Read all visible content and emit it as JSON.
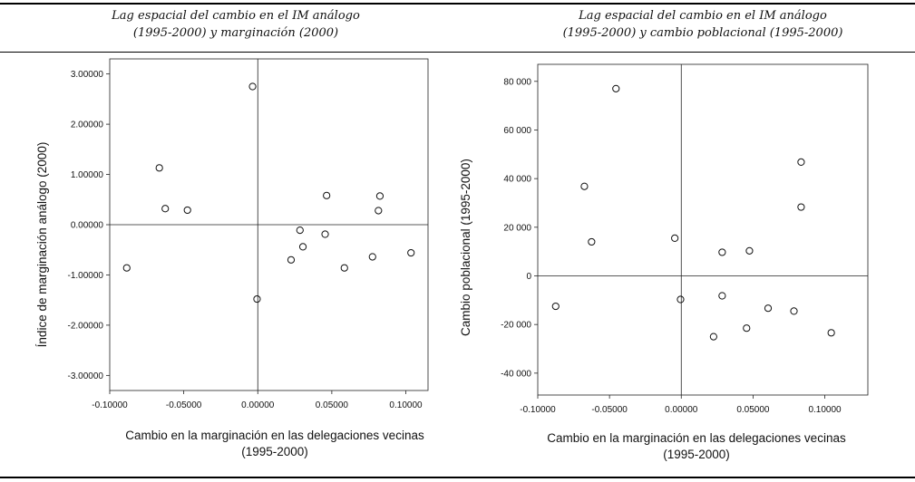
{
  "captions": {
    "left": {
      "line1_pre": "Lag espacial del cambio en el ",
      "line1_abbr": "IM",
      "line1_post": " análogo",
      "line2": "(1995-2000) y marginación (2000)"
    },
    "right": {
      "line1_pre": "Lag espacial del cambio en el ",
      "line1_abbr": "IM",
      "line1_post": " análogo",
      "line2": "(1995-2000) y cambio poblacional  (1995-2000)"
    }
  },
  "chart_data": [
    {
      "type": "scatter",
      "title": "Lag espacial del cambio en el IM análogo (1995-2000) y marginación (2000)",
      "xlabel_line1": "Cambio en la marginación en las delegaciones vecinas",
      "xlabel_line2": "(1995-2000)",
      "ylabel": "Índice de marginación análogo (2000)",
      "xlim": [
        -0.1,
        0.115
      ],
      "ylim": [
        -3.3,
        3.3
      ],
      "xticks": [
        -0.1,
        -0.05,
        0.0,
        0.05,
        0.1
      ],
      "xtick_labels": [
        "-0.10000",
        "-0.05000",
        "0.00000",
        "0.05000",
        "0.10000"
      ],
      "yticks": [
        3,
        2,
        1,
        0,
        -1,
        -2,
        -3
      ],
      "ytick_labels": [
        "3.00000",
        "2.00000",
        "1.00000",
        "0.00000",
        "-1.00000",
        "-2.00000",
        "-3.00000"
      ],
      "reference_lines": {
        "x": 0,
        "y": 0
      },
      "points": [
        {
          "x": -0.0885,
          "y": -0.86
        },
        {
          "x": -0.0665,
          "y": 1.13
        },
        {
          "x": -0.0625,
          "y": 0.32
        },
        {
          "x": -0.0475,
          "y": 0.29
        },
        {
          "x": -0.0035,
          "y": 2.75
        },
        {
          "x": -0.0005,
          "y": -1.48
        },
        {
          "x": 0.0225,
          "y": -0.7
        },
        {
          "x": 0.0285,
          "y": -0.11
        },
        {
          "x": 0.0305,
          "y": -0.44
        },
        {
          "x": 0.0455,
          "y": -0.19
        },
        {
          "x": 0.0465,
          "y": 0.58
        },
        {
          "x": 0.0585,
          "y": -0.86
        },
        {
          "x": 0.0775,
          "y": -0.64
        },
        {
          "x": 0.0815,
          "y": 0.28
        },
        {
          "x": 0.0825,
          "y": 0.57
        },
        {
          "x": 0.1035,
          "y": -0.56
        }
      ]
    },
    {
      "type": "scatter",
      "title": "Lag espacial del cambio en el IM análogo (1995-2000) y cambio poblacional (1995-2000)",
      "xlabel_line1": "Cambio en la marginación en las delegaciones vecinas",
      "xlabel_line2": "(1995-2000)",
      "ylabel": "Cambio poblacional (1995-2000)",
      "xlim": [
        -0.1,
        0.13
      ],
      "ylim": [
        -49000,
        87000
      ],
      "xticks": [
        -0.1,
        -0.05,
        0.0,
        0.05,
        0.1
      ],
      "xtick_labels": [
        "-0.10000",
        "-0.05000",
        "0.00000",
        "0.05000",
        "0.10000"
      ],
      "yticks": [
        80000,
        60000,
        40000,
        20000,
        0,
        -20000,
        -40000
      ],
      "ytick_labels": [
        "80 000",
        "60 000",
        "40 000",
        "20 000",
        "0",
        "-20 000",
        "-40 000"
      ],
      "reference_lines": {
        "x": 0,
        "y": 0
      },
      "points": [
        {
          "x": -0.0875,
          "y": -12500
        },
        {
          "x": -0.0675,
          "y": 36800
        },
        {
          "x": -0.0625,
          "y": 14000
        },
        {
          "x": -0.0455,
          "y": 77000
        },
        {
          "x": -0.0045,
          "y": 15500
        },
        {
          "x": -0.0005,
          "y": -9700
        },
        {
          "x": 0.0225,
          "y": -25000
        },
        {
          "x": 0.0285,
          "y": 9700
        },
        {
          "x": 0.0285,
          "y": -8200
        },
        {
          "x": 0.0455,
          "y": -21500
        },
        {
          "x": 0.0475,
          "y": 10300
        },
        {
          "x": 0.0605,
          "y": -13300
        },
        {
          "x": 0.0785,
          "y": -14500
        },
        {
          "x": 0.0835,
          "y": 46800
        },
        {
          "x": 0.0835,
          "y": 28300
        },
        {
          "x": 0.1045,
          "y": -23400
        }
      ]
    }
  ]
}
